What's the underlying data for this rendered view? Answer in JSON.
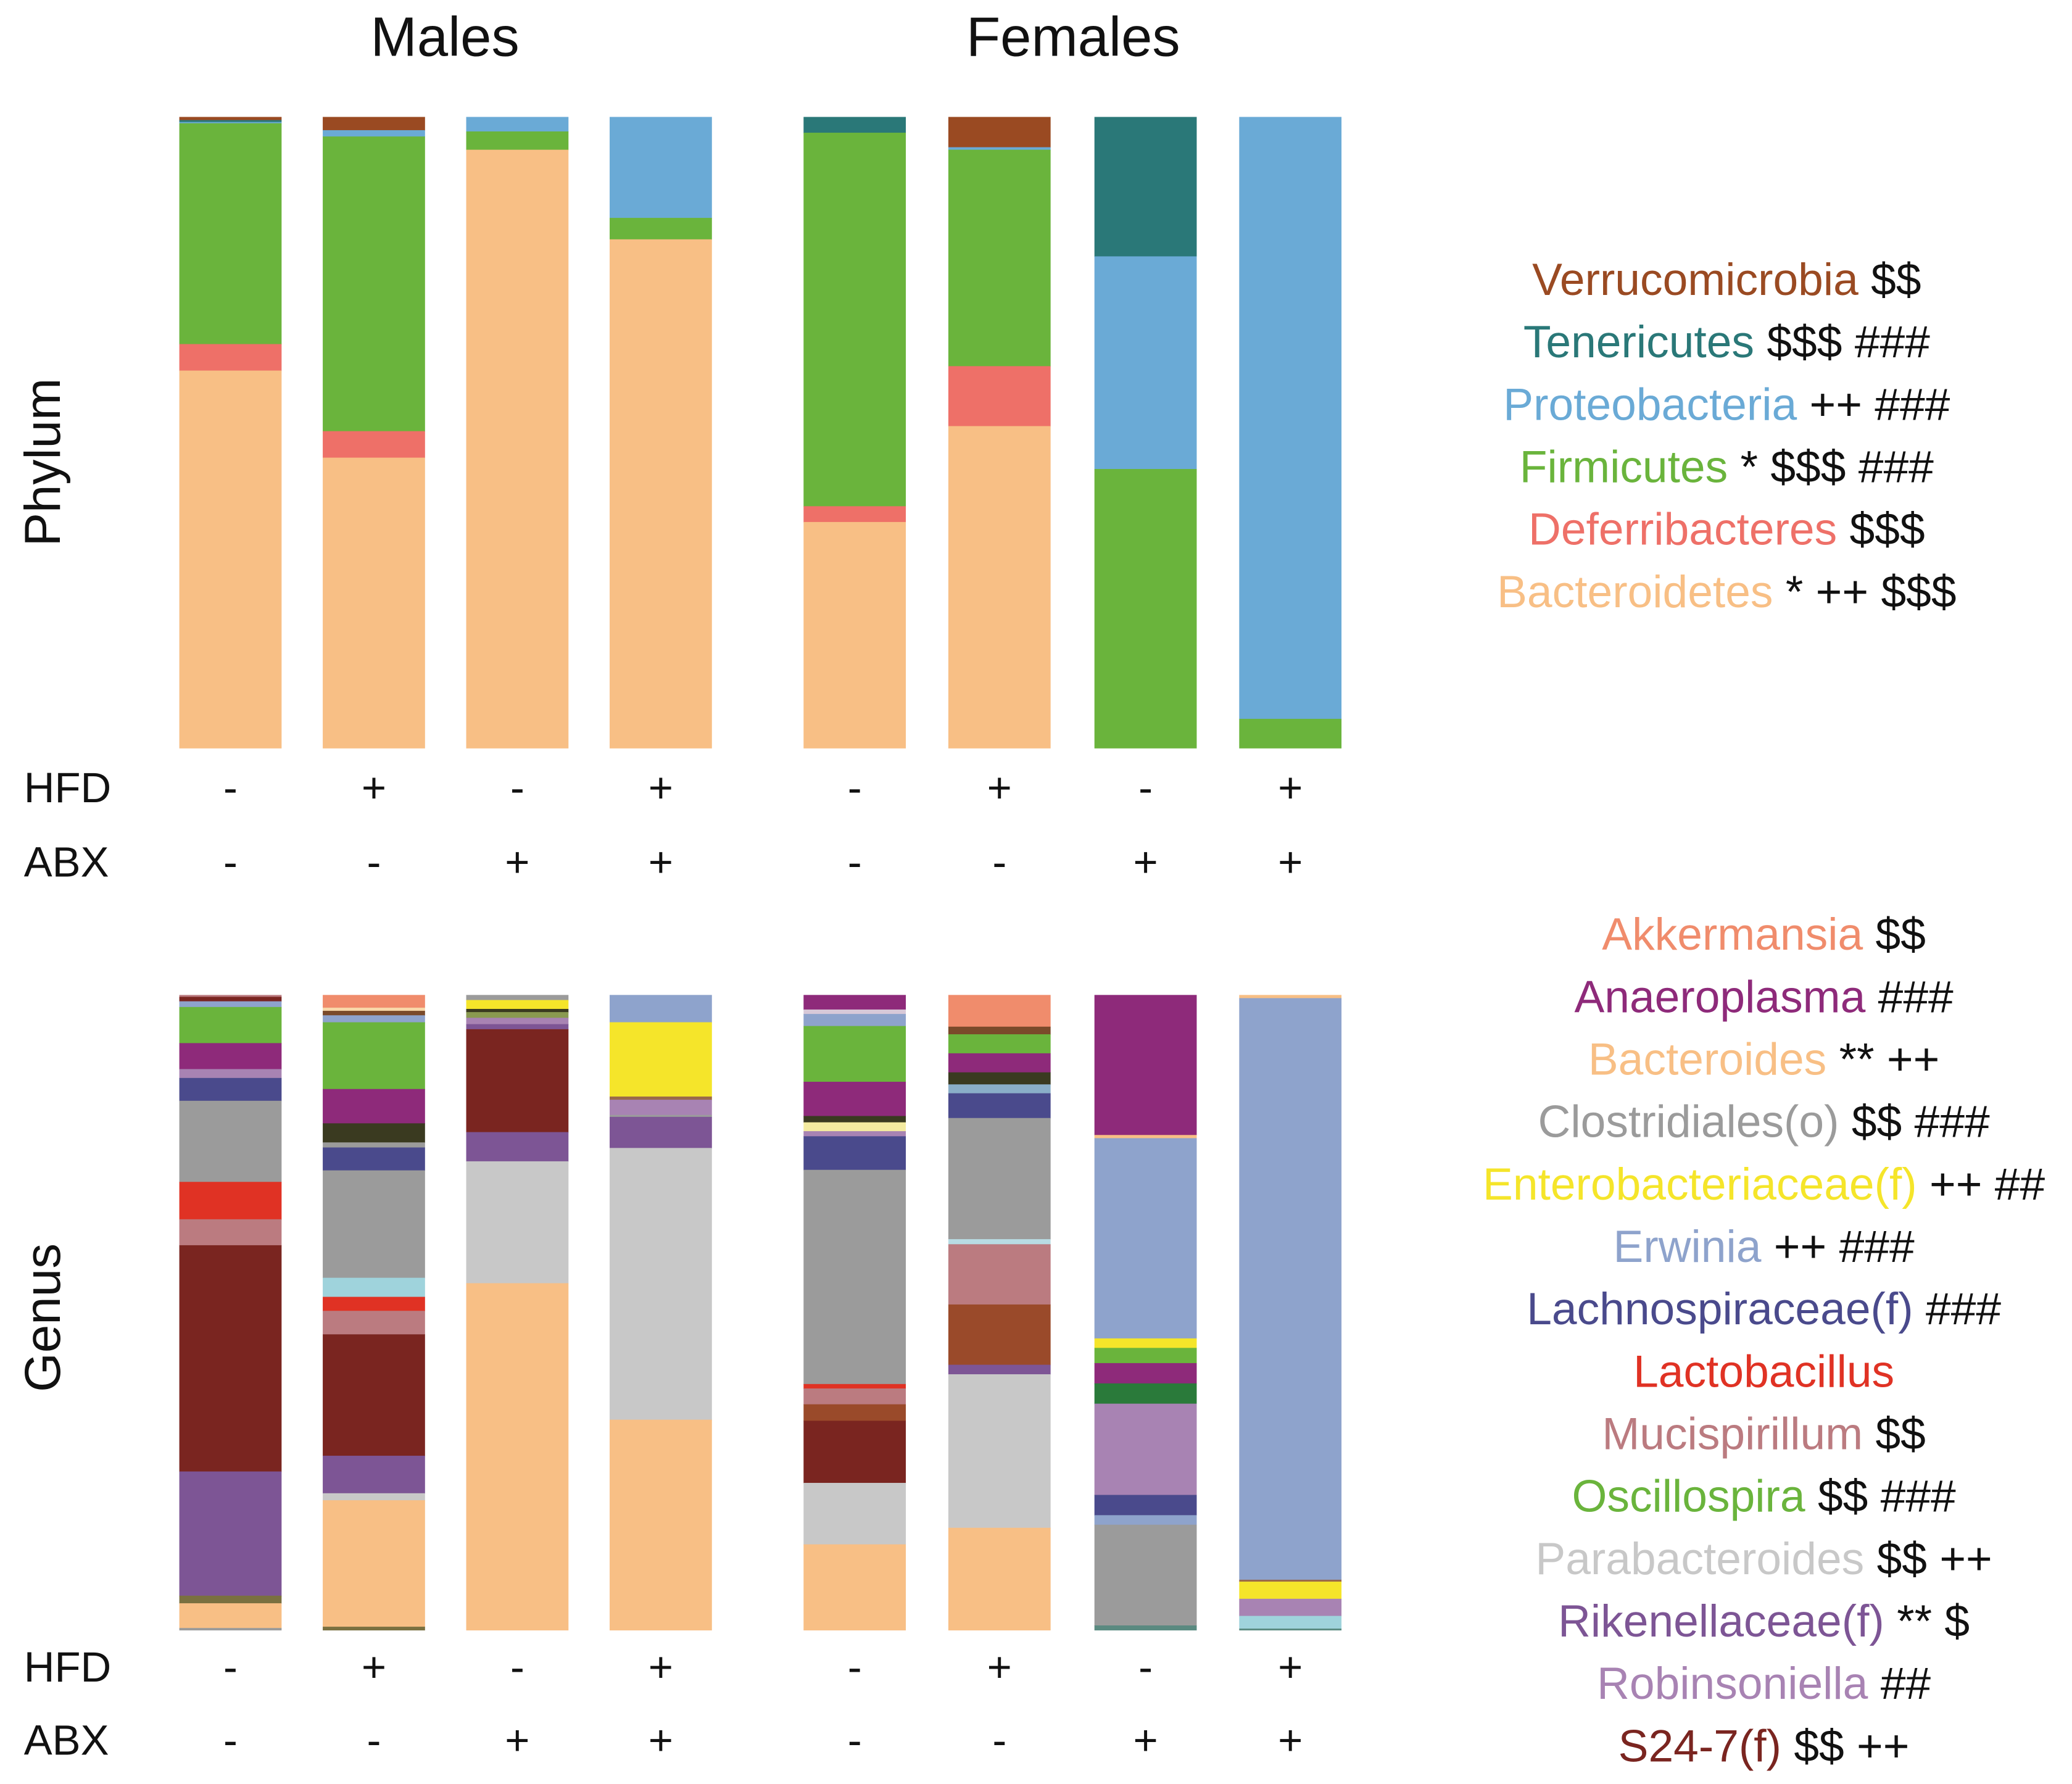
{
  "chart_data": [
    {
      "type": "bar",
      "stacked": true,
      "ylabel": "Phylum",
      "group_titles": [
        "Males",
        "Females"
      ],
      "row_labels": [
        "HFD",
        "ABX"
      ],
      "hfd": [
        "-",
        "+",
        "-",
        "+",
        "-",
        "+",
        "-",
        "+"
      ],
      "abx": [
        "-",
        "-",
        "+",
        "+",
        "-",
        "-",
        "+",
        "+"
      ],
      "unit": "percent relative abundance, stacked top-to-bottom",
      "taxa": [
        {
          "name": "Verrucomicrobia",
          "marks": "$$",
          "color": "#9a4a22"
        },
        {
          "name": "Tenericutes",
          "marks": "$$$ ###",
          "color": "#2a7878"
        },
        {
          "name": "Proteobacteria",
          "marks": "++ ###",
          "color": "#6aaad6"
        },
        {
          "name": "Firmicutes",
          "marks": "* $$$ ###",
          "color": "#6ab43c"
        },
        {
          "name": "Deferribacteres",
          "marks": "$$$",
          "color": "#ee7068"
        },
        {
          "name": "Bacteroidetes",
          "marks": "* ++ $$$",
          "color": "#f8bf85"
        }
      ],
      "values": [
        [
          0.5,
          0.3,
          0.2,
          35.0,
          4.2,
          59.8
        ],
        [
          2.1,
          0,
          1.0,
          46.7,
          4.2,
          46.0
        ],
        [
          0,
          0,
          2.3,
          2.9,
          0,
          94.8
        ],
        [
          0,
          0,
          16.0,
          3.4,
          0,
          80.6
        ],
        [
          0,
          2.5,
          0,
          59.2,
          2.5,
          35.8
        ],
        [
          4.8,
          0,
          0.4,
          34.3,
          9.5,
          51.0
        ],
        [
          0,
          22.1,
          33.7,
          44.2,
          0,
          0
        ],
        [
          0,
          0,
          95.4,
          4.6,
          0,
          0
        ]
      ]
    },
    {
      "type": "bar",
      "stacked": true,
      "ylabel": "Genus",
      "row_labels": [
        "HFD",
        "ABX"
      ],
      "hfd": [
        "-",
        "+",
        "-",
        "+",
        "-",
        "+",
        "-",
        "+"
      ],
      "abx": [
        "-",
        "-",
        "+",
        "+",
        "-",
        "-",
        "+",
        "+"
      ],
      "unit": "percent relative abundance, stacked top-to-bottom",
      "taxa": [
        {
          "name": "Akkermansia",
          "marks": "$$",
          "color": "#f08c6c"
        },
        {
          "name": "Anaeroplasma",
          "marks": "###",
          "color": "#8e2a7a"
        },
        {
          "name": "Bacteroides",
          "marks": "** ++",
          "color": "#f8bf85"
        },
        {
          "name": "Clostridiales(o)",
          "marks": "$$ ###",
          "color": "#9b9b9b"
        },
        {
          "name": "Enterobacteriaceae(f)",
          "marks": "++ ##",
          "color": "#f5e52a"
        },
        {
          "name": "Erwinia",
          "marks": "++ ###",
          "color": "#8ea3cc"
        },
        {
          "name": "Lachnospiraceae(f)",
          "marks": "###",
          "color": "#4a4a8c"
        },
        {
          "name": "Lactobacillus",
          "marks": "",
          "color": "#e03224"
        },
        {
          "name": "Mucispirillum",
          "marks": "$$",
          "color": "#bb7b80"
        },
        {
          "name": "Oscillospira",
          "marks": "$$ ###",
          "color": "#6ab43c"
        },
        {
          "name": "Parabacteroides",
          "marks": "$$ ++",
          "color": "#c8c8c8"
        },
        {
          "name": "Rikenellaceae(f)",
          "marks": "** $",
          "color": "#7d5595"
        },
        {
          "name": "Robinsoniella",
          "marks": "##",
          "color": "#a883b3"
        },
        {
          "name": "S24-7(f)",
          "marks": "$$ ++",
          "color": "#7a2520"
        }
      ],
      "segments": [
        [
          [
            "#bb7b80",
            0.3
          ],
          [
            "#7a2520",
            0.7
          ],
          [
            "#8ea3cc",
            0.9
          ],
          [
            "#6ab43c",
            5.7
          ],
          [
            "#8e2a7a",
            4.1
          ],
          [
            "#a883b3",
            1.4
          ],
          [
            "#4a4a8c",
            3.6
          ],
          [
            "#9b9b9b",
            12.8
          ],
          [
            "#e03224",
            5.9
          ],
          [
            "#bb7b80",
            4.1
          ],
          [
            "#7a2520",
            35.7
          ],
          [
            "#7d5595",
            19.6
          ],
          [
            "#7a7040",
            1.2
          ],
          [
            "#f8bf85",
            3.9
          ],
          [
            "#9b9b9b",
            0.3
          ]
        ],
        [
          [
            "#f08c6c",
            2.0
          ],
          [
            "#f8d7a8",
            0.5
          ],
          [
            "#7a4a2a",
            0.7
          ],
          [
            "#8ea3cc",
            1.1
          ],
          [
            "#6ab43c",
            10.5
          ],
          [
            "#8e2a7a",
            5.4
          ],
          [
            "#3a3a20",
            3.0
          ],
          [
            "#9b9b9b",
            0.8
          ],
          [
            "#4a4a8c",
            3.6
          ],
          [
            "#9b9b9b",
            16.9
          ],
          [
            "#9fd3dc",
            3.0
          ],
          [
            "#e03224",
            2.2
          ],
          [
            "#bb7b80",
            3.7
          ],
          [
            "#7a2520",
            19.1
          ],
          [
            "#7d5595",
            5.9
          ],
          [
            "#c8c8c8",
            1.1
          ],
          [
            "#f8bf85",
            19.9
          ],
          [
            "#7a7040",
            0.5
          ]
        ],
        [
          [
            "#9b9b9b",
            0.8
          ],
          [
            "#f5e52a",
            1.4
          ],
          [
            "#3a3a20",
            0.5
          ],
          [
            "#8a9a50",
            0.9
          ],
          [
            "#a883b3",
            1.0
          ],
          [
            "#7d5595",
            0.8
          ],
          [
            "#7a2520",
            16.2
          ],
          [
            "#7d5595",
            4.6
          ],
          [
            "#c8c8c8",
            19.2
          ],
          [
            "#f8bf85",
            54.6
          ]
        ],
        [
          [
            "#8ea3cc",
            4.3
          ],
          [
            "#f5e52a",
            11.7
          ],
          [
            "#9a6a4a",
            0.5
          ],
          [
            "#a883b3",
            2.4
          ],
          [
            "#9b9b9b",
            0.3
          ],
          [
            "#7d5595",
            4.9
          ],
          [
            "#c8c8c8",
            42.8
          ],
          [
            "#f8bf85",
            33.1
          ]
        ],
        [
          [
            "#8e2a7a",
            2.3
          ],
          [
            "#d8c8d8",
            0.7
          ],
          [
            "#8ea3cc",
            1.9
          ],
          [
            "#6ab43c",
            8.8
          ],
          [
            "#8e2a7a",
            5.4
          ],
          [
            "#3a3a20",
            1.0
          ],
          [
            "#f4eba0",
            1.4
          ],
          [
            "#a883b3",
            0.8
          ],
          [
            "#4a4a8c",
            5.3
          ],
          [
            "#9b9b9b",
            33.8
          ],
          [
            "#e03224",
            0.7
          ],
          [
            "#bb7b80",
            2.5
          ],
          [
            "#9a4a2a",
            2.6
          ],
          [
            "#7a2520",
            9.8
          ],
          [
            "#c8c8c8",
            9.7
          ],
          [
            "#f8bf85",
            13.5
          ]
        ],
        [
          [
            "#f08c6c",
            5.0
          ],
          [
            "#7a4a2a",
            1.2
          ],
          [
            "#6ab43c",
            3.0
          ],
          [
            "#8e2a7a",
            3.0
          ],
          [
            "#3a3a20",
            1.9
          ],
          [
            "#8aaec8",
            1.4
          ],
          [
            "#4a4a8c",
            3.9
          ],
          [
            "#9b9b9b",
            19.1
          ],
          [
            "#b8dce4",
            0.8
          ],
          [
            "#bb7b80",
            9.5
          ],
          [
            "#9a4a2a",
            9.5
          ],
          [
            "#7d5595",
            1.5
          ],
          [
            "#c8c8c8",
            24.2
          ],
          [
            "#f8bf85",
            16.1
          ]
        ],
        [
          [
            "#8e2a7a",
            22.1
          ],
          [
            "#f8bf85",
            0.5
          ],
          [
            "#8ea3cc",
            31.6
          ],
          [
            "#f5e52a",
            1.5
          ],
          [
            "#6ab43c",
            2.4
          ],
          [
            "#8e2a7a",
            3.2
          ],
          [
            "#2a7a3a",
            3.2
          ],
          [
            "#a883b3",
            14.4
          ],
          [
            "#4a4a8c",
            3.2
          ],
          [
            "#8ea3cc",
            1.5
          ],
          [
            "#9b9b9b",
            15.9
          ],
          [
            "#5a8a80",
            0.7
          ]
        ],
        [
          [
            "#f8bf85",
            0.5
          ],
          [
            "#8ea3cc",
            91.6
          ],
          [
            "#9a6a4a",
            0.3
          ],
          [
            "#f5e52a",
            2.7
          ],
          [
            "#a883b3",
            2.7
          ],
          [
            "#9fd3dc",
            2.0
          ],
          [
            "#5a8a80",
            0.2
          ]
        ]
      ]
    }
  ]
}
